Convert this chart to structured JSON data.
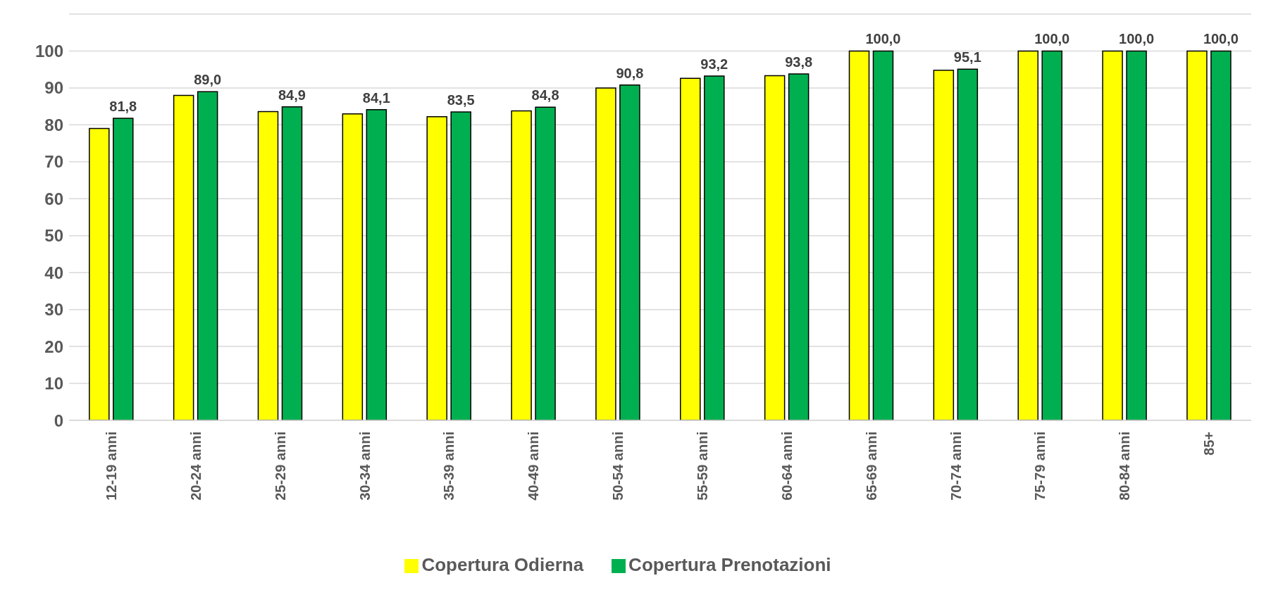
{
  "chart_data": {
    "type": "bar",
    "categories": [
      "12-19 anni",
      "20-24 anni",
      "25-29 anni",
      "30-34 anni",
      "35-39 anni",
      "40-49 anni",
      "50-54 anni",
      "55-59 anni",
      "60-64 anni",
      "65-69 anni",
      "70-74 anni",
      "75-79 anni",
      "80-84 anni",
      "85+"
    ],
    "series": [
      {
        "name": "Copertura Odierna",
        "color": "#ffff00",
        "values": [
          79.0,
          88.0,
          83.6,
          83.0,
          82.2,
          83.8,
          90.0,
          92.6,
          93.3,
          100,
          94.8,
          100,
          100,
          100
        ]
      },
      {
        "name": "Copertura Prenotazioni",
        "color": "#00b050",
        "values": [
          81.8,
          89.0,
          84.9,
          84.1,
          83.5,
          84.8,
          90.8,
          93.2,
          93.8,
          100,
          95.1,
          100,
          100,
          100
        ],
        "value_labels": [
          "81,8",
          "89,0",
          "84,9",
          "84,1",
          "83,5",
          "84,8",
          "90,8",
          "93,2",
          "93,8",
          "100,0",
          "95,1",
          "100,0",
          "100,0",
          "100,0"
        ]
      }
    ],
    "ylim": [
      0,
      110
    ],
    "yticks": [
      0,
      10,
      20,
      30,
      40,
      50,
      60,
      70,
      80,
      90,
      100,
      {
        "value": 110,
        "label": null
      }
    ],
    "grid": "y",
    "legend": "bottom"
  }
}
